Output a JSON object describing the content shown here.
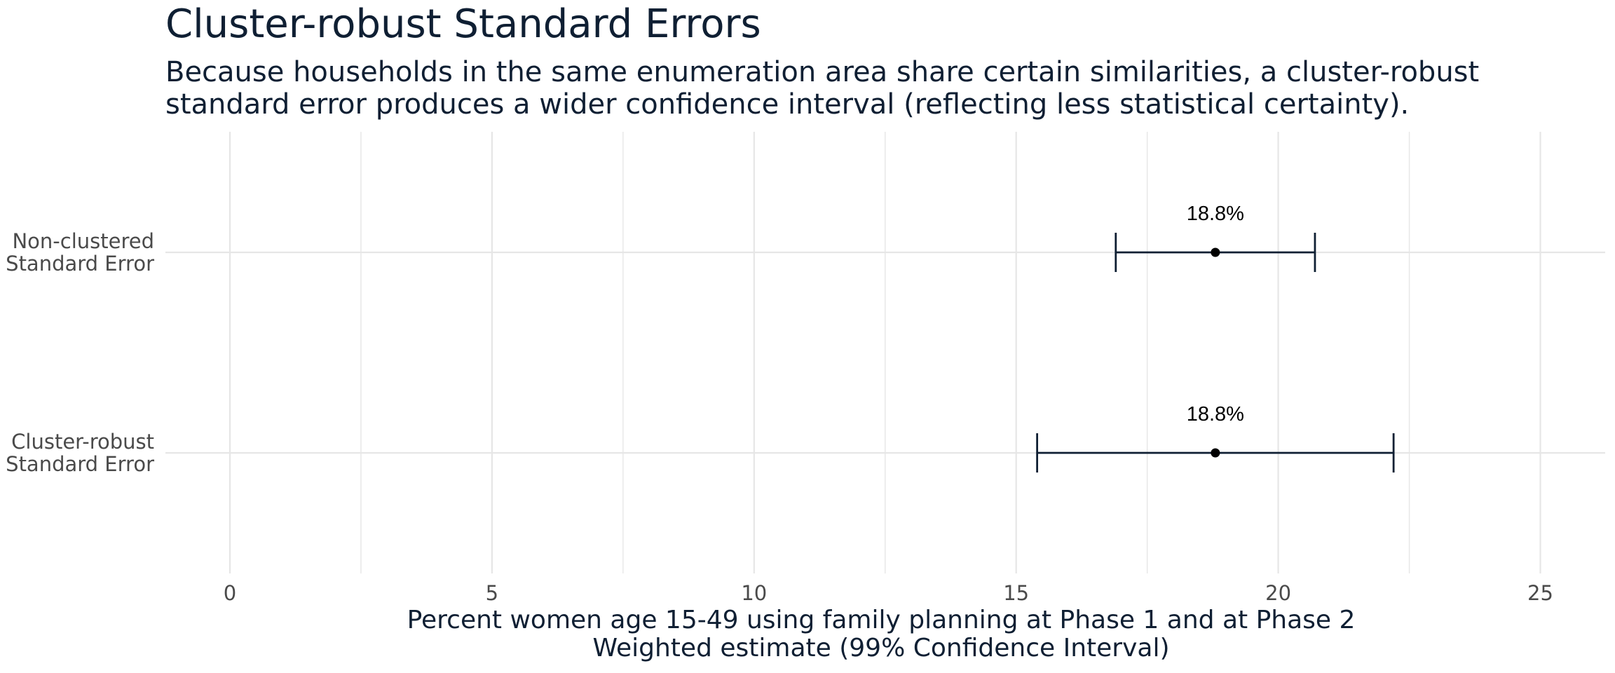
{
  "title": "Cluster-robust Standard Errors",
  "subtitle_lines": [
    "Because households in the same enumeration area share certain similarities, a cluster-robust",
    "standard error produces a wider confidence interval (reflecting less statistical certainty)."
  ],
  "chart_data": {
    "type": "errorbar",
    "xlabel_lines": [
      "Percent women age 15-49 using family planning at Phase 1 and at Phase 2",
      "Weighted estimate (99% Confidence Interval)"
    ],
    "xlim": [
      0,
      26
    ],
    "x_ticks": [
      0,
      5,
      10,
      15,
      20,
      25
    ],
    "grid": true,
    "series": [
      {
        "category_lines": [
          "Non-clustered",
          "Standard Error"
        ],
        "estimate": 18.8,
        "lower": 16.9,
        "upper": 20.7,
        "label": "18.8%"
      },
      {
        "category_lines": [
          "Cluster-robust",
          "Standard Error"
        ],
        "estimate": 18.8,
        "lower": 15.4,
        "upper": 22.2,
        "label": "18.8%"
      }
    ],
    "colors": {
      "errorbar": "#0f1f33",
      "point": "#000000",
      "grid": "#e6e6e6"
    }
  }
}
